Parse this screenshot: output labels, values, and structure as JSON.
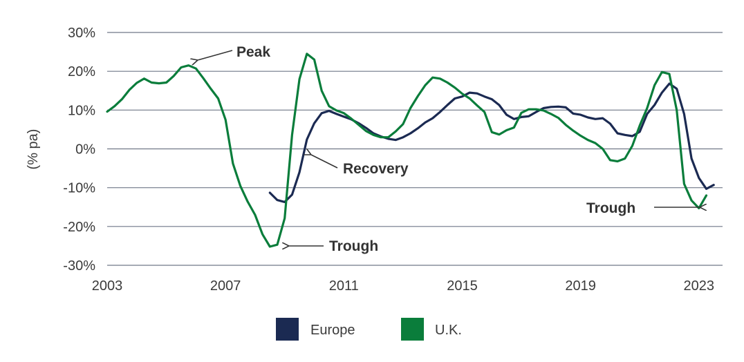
{
  "chart_data": {
    "type": "line",
    "title": "",
    "xlabel": "",
    "ylabel": "(% pa)",
    "xlim": [
      2003,
      2023.8
    ],
    "ylim": [
      -30,
      30
    ],
    "x_ticks": [
      2003,
      2007,
      2011,
      2015,
      2019,
      2023
    ],
    "x_tick_labels": [
      "2003",
      "2007",
      "2011",
      "2015",
      "2019",
      "2023"
    ],
    "y_ticks": [
      30,
      20,
      10,
      0,
      -10,
      -20,
      -30
    ],
    "y_tick_labels": [
      "30%",
      "20%",
      "10%",
      "0%",
      "-10%",
      "-20%",
      "-30%"
    ],
    "grid": true,
    "legend_position": "bottom-center",
    "series": [
      {
        "name": "Europe",
        "color": "#1b2a52",
        "points": [
          [
            2008.5,
            -11.3
          ],
          [
            2008.75,
            -13.2
          ],
          [
            2009.0,
            -13.7
          ],
          [
            2009.25,
            -11.8
          ],
          [
            2009.5,
            -6.0
          ],
          [
            2009.75,
            2.4
          ],
          [
            2010.0,
            6.6
          ],
          [
            2010.25,
            9.2
          ],
          [
            2010.5,
            9.8
          ],
          [
            2010.75,
            9.0
          ],
          [
            2011.0,
            8.3
          ],
          [
            2011.25,
            7.6
          ],
          [
            2011.5,
            6.6
          ],
          [
            2011.75,
            5.4
          ],
          [
            2012.0,
            4.0
          ],
          [
            2012.25,
            3.2
          ],
          [
            2012.5,
            2.6
          ],
          [
            2012.75,
            2.3
          ],
          [
            2013.0,
            3.0
          ],
          [
            2013.25,
            4.0
          ],
          [
            2013.5,
            5.3
          ],
          [
            2013.75,
            6.8
          ],
          [
            2014.0,
            7.9
          ],
          [
            2014.25,
            9.5
          ],
          [
            2014.5,
            11.3
          ],
          [
            2014.75,
            13.0
          ],
          [
            2015.0,
            13.5
          ],
          [
            2015.25,
            14.5
          ],
          [
            2015.5,
            14.3
          ],
          [
            2015.75,
            13.5
          ],
          [
            2016.0,
            12.8
          ],
          [
            2016.25,
            11.3
          ],
          [
            2016.5,
            8.8
          ],
          [
            2016.75,
            7.7
          ],
          [
            2017.0,
            8.2
          ],
          [
            2017.25,
            8.4
          ],
          [
            2017.5,
            9.5
          ],
          [
            2017.75,
            10.5
          ],
          [
            2018.0,
            10.8
          ],
          [
            2018.25,
            10.9
          ],
          [
            2018.5,
            10.7
          ],
          [
            2018.75,
            9.1
          ],
          [
            2019.0,
            8.8
          ],
          [
            2019.25,
            8.1
          ],
          [
            2019.5,
            7.7
          ],
          [
            2019.75,
            7.9
          ],
          [
            2020.0,
            6.5
          ],
          [
            2020.25,
            4.0
          ],
          [
            2020.5,
            3.6
          ],
          [
            2020.75,
            3.3
          ],
          [
            2021.0,
            4.4
          ],
          [
            2021.25,
            9.0
          ],
          [
            2021.5,
            11.3
          ],
          [
            2021.75,
            14.5
          ],
          [
            2022.0,
            16.8
          ],
          [
            2022.25,
            15.5
          ],
          [
            2022.5,
            9.0
          ],
          [
            2022.75,
            -2.5
          ],
          [
            2023.0,
            -7.5
          ],
          [
            2023.25,
            -10.3
          ],
          [
            2023.5,
            -9.3
          ]
        ]
      },
      {
        "name": "U.K.",
        "color": "#0a7d3b",
        "points": [
          [
            2003.0,
            9.6
          ],
          [
            2003.25,
            11.0
          ],
          [
            2003.5,
            12.8
          ],
          [
            2003.75,
            15.2
          ],
          [
            2004.0,
            17.0
          ],
          [
            2004.25,
            18.1
          ],
          [
            2004.5,
            17.1
          ],
          [
            2004.75,
            16.9
          ],
          [
            2005.0,
            17.1
          ],
          [
            2005.25,
            18.8
          ],
          [
            2005.5,
            21.0
          ],
          [
            2005.75,
            21.5
          ],
          [
            2006.0,
            20.7
          ],
          [
            2006.25,
            18.2
          ],
          [
            2006.5,
            15.5
          ],
          [
            2006.75,
            13.0
          ],
          [
            2007.0,
            7.5
          ],
          [
            2007.25,
            -3.8
          ],
          [
            2007.5,
            -9.5
          ],
          [
            2007.75,
            -13.6
          ],
          [
            2008.0,
            -17.0
          ],
          [
            2008.25,
            -22.0
          ],
          [
            2008.5,
            -25.2
          ],
          [
            2008.75,
            -24.7
          ],
          [
            2009.0,
            -17.9
          ],
          [
            2009.25,
            3.6
          ],
          [
            2009.5,
            18.0
          ],
          [
            2009.75,
            24.5
          ],
          [
            2010.0,
            23.0
          ],
          [
            2010.25,
            15.0
          ],
          [
            2010.5,
            11.0
          ],
          [
            2010.75,
            9.9
          ],
          [
            2011.0,
            9.2
          ],
          [
            2011.25,
            7.8
          ],
          [
            2011.5,
            6.2
          ],
          [
            2011.75,
            4.6
          ],
          [
            2012.0,
            3.6
          ],
          [
            2012.25,
            3.0
          ],
          [
            2012.5,
            3.0
          ],
          [
            2012.75,
            4.5
          ],
          [
            2013.0,
            6.4
          ],
          [
            2013.25,
            10.5
          ],
          [
            2013.5,
            13.6
          ],
          [
            2013.75,
            16.4
          ],
          [
            2014.0,
            18.4
          ],
          [
            2014.25,
            18.1
          ],
          [
            2014.5,
            17.1
          ],
          [
            2014.75,
            15.8
          ],
          [
            2015.0,
            14.2
          ],
          [
            2015.25,
            13.0
          ],
          [
            2015.5,
            11.2
          ],
          [
            2015.75,
            9.5
          ],
          [
            2016.0,
            4.3
          ],
          [
            2016.25,
            3.7
          ],
          [
            2016.5,
            4.8
          ],
          [
            2016.75,
            5.5
          ],
          [
            2017.0,
            9.3
          ],
          [
            2017.25,
            10.2
          ],
          [
            2017.5,
            10.2
          ],
          [
            2017.75,
            9.9
          ],
          [
            2018.0,
            9.0
          ],
          [
            2018.25,
            8.0
          ],
          [
            2018.5,
            6.2
          ],
          [
            2018.75,
            4.7
          ],
          [
            2019.0,
            3.4
          ],
          [
            2019.25,
            2.3
          ],
          [
            2019.5,
            1.5
          ],
          [
            2019.75,
            0.0
          ],
          [
            2020.0,
            -2.9
          ],
          [
            2020.25,
            -3.2
          ],
          [
            2020.5,
            -2.5
          ],
          [
            2020.75,
            0.8
          ],
          [
            2021.0,
            6.0
          ],
          [
            2021.25,
            10.5
          ],
          [
            2021.5,
            16.4
          ],
          [
            2021.75,
            19.8
          ],
          [
            2022.0,
            19.3
          ],
          [
            2022.25,
            10.0
          ],
          [
            2022.5,
            -9.0
          ],
          [
            2022.75,
            -13.3
          ],
          [
            2023.0,
            -15.3
          ],
          [
            2023.25,
            -12.0
          ]
        ]
      }
    ],
    "annotations": [
      {
        "text": "Peak"
      },
      {
        "text": "Recovery"
      },
      {
        "text": "Trough"
      },
      {
        "text": "Trough"
      }
    ]
  },
  "legend": {
    "items": [
      {
        "label": "Europe",
        "color": "#1b2a52"
      },
      {
        "label": "U.K.",
        "color": "#0a7d3b"
      }
    ]
  }
}
